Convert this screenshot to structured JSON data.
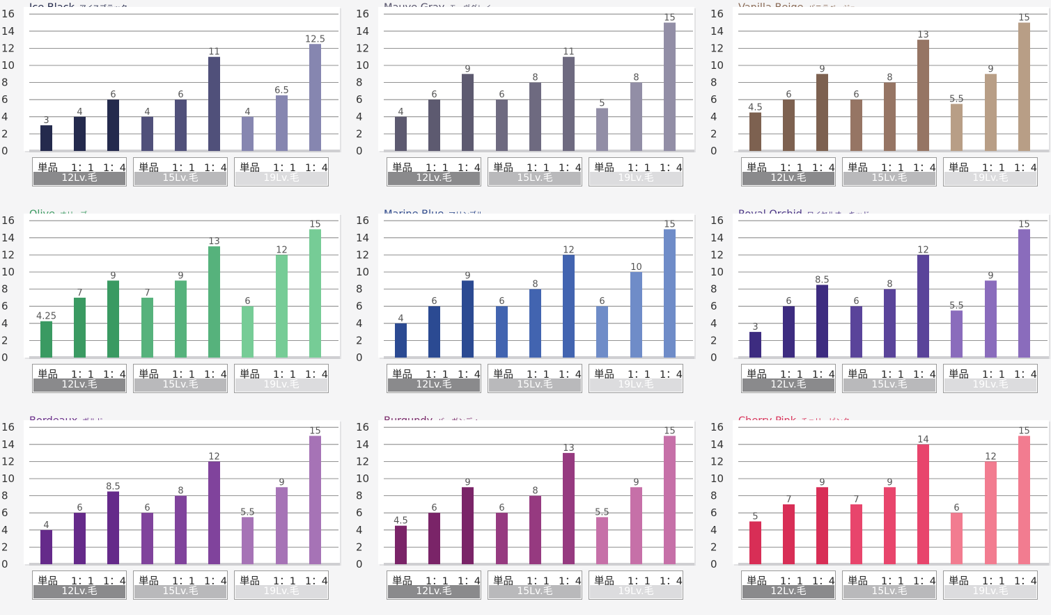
{
  "categories": [
    "単品",
    "1：1",
    "1：4"
  ],
  "groups": [
    "12Lv.毛",
    "15Lv.毛",
    "19Lv.毛"
  ],
  "group_label_colors": [
    "#8a8a8c",
    "#b9b9bb",
    "#dcdcde"
  ],
  "chart_data": [
    {
      "type": "bar",
      "title": "Ice Black",
      "subtitle": "アイスブラック",
      "title_color": "#22284a",
      "categories": [
        "単品",
        "1：1",
        "1：4",
        "単品",
        "1：1",
        "1：4",
        "単品",
        "1：1",
        "1：4"
      ],
      "groups": [
        "12Lv.毛",
        "15Lv.毛",
        "19Lv.毛"
      ],
      "values": [
        3,
        4,
        6,
        4,
        6,
        11,
        4,
        6.5,
        12.5
      ],
      "colors": [
        "#242a4d",
        "#242a4d",
        "#242a4d",
        "#50507a",
        "#50507a",
        "#50507a",
        "#8686b0",
        "#8686b0",
        "#8686b0"
      ],
      "ylim": [
        0,
        16
      ],
      "yticks": [
        0,
        2,
        4,
        6,
        8,
        10,
        12,
        14,
        16
      ],
      "grid": true
    },
    {
      "type": "bar",
      "title": "Mauve Gray",
      "subtitle": "モーヴグレイ",
      "title_color": "#55526a",
      "categories": [
        "単品",
        "1：1",
        "1：4",
        "単品",
        "1：1",
        "1：4",
        "単品",
        "1：1",
        "1：4"
      ],
      "groups": [
        "12Lv.毛",
        "15Lv.毛",
        "19Lv.毛"
      ],
      "values": [
        4,
        6,
        9,
        6,
        8,
        11,
        5,
        8,
        15
      ],
      "colors": [
        "#5d5a70",
        "#5d5a70",
        "#5d5a70",
        "#6e6a80",
        "#6e6a80",
        "#6e6a80",
        "#928ea6",
        "#928ea6",
        "#928ea6"
      ],
      "ylim": [
        0,
        16
      ],
      "yticks": [
        0,
        2,
        4,
        6,
        8,
        10,
        12,
        14,
        16
      ],
      "grid": true
    },
    {
      "type": "bar",
      "title": "Vanilla Beige",
      "subtitle": "バニラベージュ",
      "title_color": "#8a6a55",
      "categories": [
        "単品",
        "1：1",
        "1：4",
        "単品",
        "1：1",
        "1：4",
        "単品",
        "1：1",
        "1：4"
      ],
      "groups": [
        "12Lv.毛",
        "15Lv.毛",
        "19Lv.毛"
      ],
      "values": [
        4.5,
        6,
        9,
        6,
        8,
        13,
        5.5,
        9,
        15
      ],
      "colors": [
        "#7d6150",
        "#7d6150",
        "#7d6150",
        "#967564",
        "#967564",
        "#967564",
        "#b89e86",
        "#b89e86",
        "#b89e86"
      ],
      "ylim": [
        0,
        16
      ],
      "yticks": [
        0,
        2,
        4,
        6,
        8,
        10,
        12,
        14,
        16
      ],
      "grid": true
    },
    {
      "type": "bar",
      "title": "Olive",
      "subtitle": "オリーブ",
      "title_color": "#3a9a60",
      "categories": [
        "単品",
        "1：1",
        "1：4",
        "単品",
        "1：1",
        "1：4",
        "単品",
        "1：1",
        "1：4"
      ],
      "groups": [
        "12Lv.毛",
        "15Lv.毛",
        "19Lv.毛"
      ],
      "values": [
        4.25,
        7,
        9,
        7,
        9,
        13,
        6,
        12,
        15
      ],
      "colors": [
        "#3a9a62",
        "#3a9a62",
        "#3a9a62",
        "#56b27c",
        "#56b27c",
        "#56b27c",
        "#76cc96",
        "#76cc96",
        "#76cc96"
      ],
      "ylim": [
        0,
        16
      ],
      "yticks": [
        0,
        2,
        4,
        6,
        8,
        10,
        12,
        14,
        16
      ],
      "grid": true
    },
    {
      "type": "bar",
      "title": "Marine Blue",
      "subtitle": "マリンブルー",
      "title_color": "#2f4a8c",
      "categories": [
        "単品",
        "1：1",
        "1：4",
        "単品",
        "1：1",
        "1：4",
        "単品",
        "1：1",
        "1：4"
      ],
      "groups": [
        "12Lv.毛",
        "15Lv.毛",
        "19Lv.毛"
      ],
      "values": [
        4,
        6,
        9,
        6,
        8,
        12,
        6,
        10,
        15
      ],
      "colors": [
        "#2b4a92",
        "#2b4a92",
        "#2b4a92",
        "#4264b0",
        "#4264b0",
        "#4264b0",
        "#6f8cc8",
        "#6f8cc8",
        "#6f8cc8"
      ],
      "ylim": [
        0,
        16
      ],
      "yticks": [
        0,
        2,
        4,
        6,
        8,
        10,
        12,
        14,
        16
      ],
      "grid": true
    },
    {
      "type": "bar",
      "title": "Royal Orchid",
      "subtitle": "ロイヤルオーキッド",
      "title_color": "#4a3585",
      "categories": [
        "単品",
        "1：1",
        "1：4",
        "単品",
        "1：1",
        "1：4",
        "単品",
        "1：1",
        "1：4"
      ],
      "groups": [
        "12Lv.毛",
        "15Lv.毛",
        "19Lv.毛"
      ],
      "values": [
        3,
        6,
        8.5,
        6,
        8,
        12,
        5.5,
        9,
        15
      ],
      "colors": [
        "#3d2c80",
        "#3d2c80",
        "#3d2c80",
        "#5a449a",
        "#5a449a",
        "#5a449a",
        "#8a6cbc",
        "#8a6cbc",
        "#8a6cbc"
      ],
      "ylim": [
        0,
        16
      ],
      "yticks": [
        0,
        2,
        4,
        6,
        8,
        10,
        12,
        14,
        16
      ],
      "grid": true
    },
    {
      "type": "bar",
      "title": "Bordeaux",
      "subtitle": "ボルドー",
      "title_color": "#6a2f8a",
      "categories": [
        "単品",
        "1：1",
        "1：4",
        "単品",
        "1：1",
        "1：4",
        "単品",
        "1：1",
        "1：4"
      ],
      "groups": [
        "12Lv.毛",
        "15Lv.毛",
        "19Lv.毛"
      ],
      "values": [
        4,
        6,
        8.5,
        6,
        8,
        12,
        5.5,
        9,
        15
      ],
      "colors": [
        "#652a8a",
        "#652a8a",
        "#652a8a",
        "#80439c",
        "#80439c",
        "#80439c",
        "#a673b6",
        "#a673b6",
        "#a673b6"
      ],
      "ylim": [
        0,
        16
      ],
      "yticks": [
        0,
        2,
        4,
        6,
        8,
        10,
        12,
        14,
        16
      ],
      "grid": true
    },
    {
      "type": "bar",
      "title": "Burgundy",
      "subtitle": "バーガンディー",
      "title_color": "#7a2a6a",
      "categories": [
        "単品",
        "1：1",
        "1：4",
        "単品",
        "1：1",
        "1：4",
        "単品",
        "1：1",
        "1：4"
      ],
      "groups": [
        "12Lv.毛",
        "15Lv.毛",
        "19Lv.毛"
      ],
      "values": [
        4.5,
        6,
        9,
        6,
        8,
        13,
        5.5,
        9,
        15
      ],
      "colors": [
        "#7a2468",
        "#7a2468",
        "#7a2468",
        "#963a80",
        "#963a80",
        "#963a80",
        "#c670a8",
        "#c670a8",
        "#c670a8"
      ],
      "ylim": [
        0,
        16
      ],
      "yticks": [
        0,
        2,
        4,
        6,
        8,
        10,
        12,
        14,
        16
      ],
      "grid": true
    },
    {
      "type": "bar",
      "title": "Cherry Pink",
      "subtitle": "チェリーピンク",
      "title_color": "#d8335a",
      "categories": [
        "単品",
        "1：1",
        "1：4",
        "単品",
        "1：1",
        "1：4",
        "単品",
        "1：1",
        "1：4"
      ],
      "groups": [
        "12Lv.毛",
        "15Lv.毛",
        "19Lv.毛"
      ],
      "values": [
        5,
        7,
        9,
        7,
        9,
        14,
        6,
        12,
        15
      ],
      "colors": [
        "#d82e56",
        "#d82e56",
        "#d82e56",
        "#e8456c",
        "#e8456c",
        "#e8456c",
        "#f27c90",
        "#f27c90",
        "#f27c90"
      ],
      "ylim": [
        0,
        16
      ],
      "yticks": [
        0,
        2,
        4,
        6,
        8,
        10,
        12,
        14,
        16
      ],
      "grid": true
    }
  ]
}
